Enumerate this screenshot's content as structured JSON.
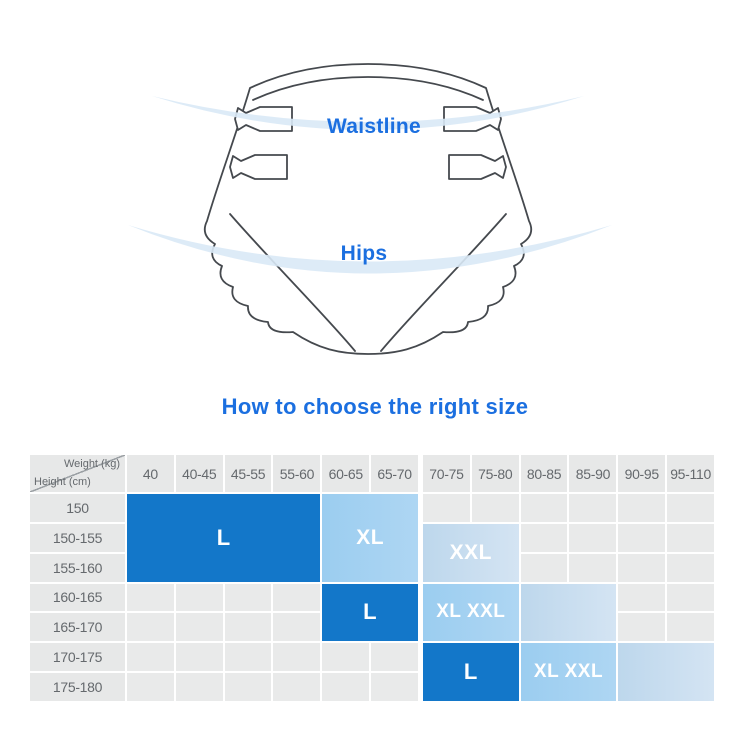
{
  "title": {
    "text": "How to choose the right size",
    "color": "#1b6fe0"
  },
  "illustration": {
    "waistline_label": "Waistline",
    "hips_label": "Hips",
    "label_color": "#1b6fe0",
    "outline_color": "#45494e",
    "tape_arc_color": "#d9e9f6"
  },
  "size_chart": {
    "colors": {
      "header_cell": "#e7e8e8",
      "empty_cell": "#e9eaea",
      "header_text": "#65696d",
      "size_dark": "#1377c9",
      "size_medium": "#a5d2f1",
      "size_light": "#c8dcef",
      "size_label_text": "#ffffff"
    }
  },
  "chart_data": {
    "type": "heatmap",
    "title": "How to choose the right size",
    "x_axis_label": "Weight (kg)",
    "y_axis_label": "Height (cm)",
    "columns": [
      "40",
      "40-45",
      "45-55",
      "55-60",
      "60-65",
      "65-70",
      "70-75",
      "75-80",
      "80-85",
      "85-90",
      "90-95",
      "95-110"
    ],
    "rows": [
      "150",
      "150-155",
      "155-160",
      "160-165",
      "165-170",
      "170-175",
      "175-180"
    ],
    "cells": [
      {
        "label": "L",
        "tone": "dark",
        "columns": [
          "40",
          "40-45",
          "45-55",
          "55-60"
        ],
        "rows": [
          "150",
          "150-155",
          "155-160"
        ]
      },
      {
        "label": "XL",
        "tone": "medium",
        "columns": [
          "60-65",
          "65-70"
        ],
        "rows": [
          "150",
          "150-155",
          "155-160"
        ]
      },
      {
        "label": "XXL",
        "tone": "light",
        "columns": [
          "70-75",
          "75-80"
        ],
        "rows": [
          "150-155",
          "155-160"
        ]
      },
      {
        "label": "L",
        "tone": "dark",
        "columns": [
          "60-65",
          "65-70"
        ],
        "rows": [
          "160-165",
          "165-170"
        ]
      },
      {
        "label": "XL XXL",
        "tone": "medium",
        "columns": [
          "70-75",
          "75-80"
        ],
        "rows": [
          "160-165",
          "165-170"
        ]
      },
      {
        "label": "",
        "tone": "light",
        "columns": [
          "80-85",
          "85-90"
        ],
        "rows": [
          "160-165",
          "165-170"
        ]
      },
      {
        "label": "L",
        "tone": "dark",
        "columns": [
          "70-75",
          "75-80"
        ],
        "rows": [
          "170-175",
          "175-180"
        ]
      },
      {
        "label": "XL XXL",
        "tone": "medium",
        "columns": [
          "80-85",
          "85-90"
        ],
        "rows": [
          "170-175",
          "175-180"
        ]
      },
      {
        "label": "",
        "tone": "light",
        "columns": [
          "90-95",
          "95-110"
        ],
        "rows": [
          "170-175",
          "175-180"
        ]
      }
    ]
  }
}
